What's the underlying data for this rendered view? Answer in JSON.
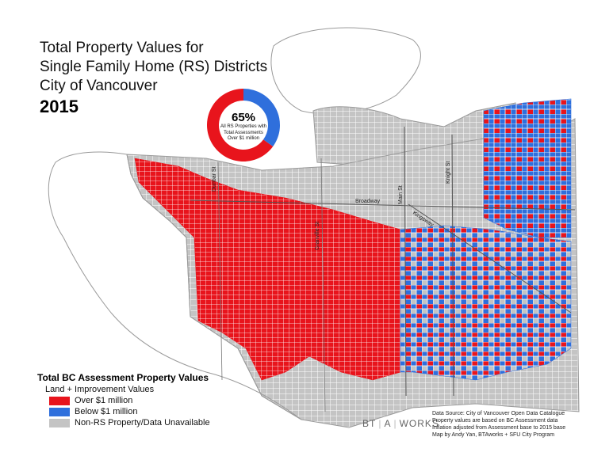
{
  "title": {
    "line1": "Total Property Values for",
    "line2": "Single Family Home (RS) Districts",
    "line3": "City of Vancouver",
    "year": "2015"
  },
  "donut": {
    "percent_label": "65%",
    "percent_value": 65,
    "caption_line1": "All RS Properties with",
    "caption_line2": "Total Assessments",
    "caption_line3": "Over $1 million"
  },
  "streets": {
    "dunbar": "Dunbar St",
    "granville": "Granville St",
    "main": "Main St",
    "knight": "Knight St",
    "broadway": "Broadway",
    "kingsway": "Kingsway"
  },
  "legend": {
    "title": "Total BC Assessment Property Values",
    "subtitle": "Land + Improvement Values",
    "items": [
      {
        "label": "Over $1 million",
        "color": "#e8141c"
      },
      {
        "label": "Below $1 million",
        "color": "#2f6fdc"
      },
      {
        "label": "Non-RS Property/Data Unavailable",
        "color": "#c4c4c4"
      }
    ]
  },
  "logo": {
    "part1": "BT",
    "part2": "A",
    "part3": "WORKS"
  },
  "source": {
    "line1": "Data Source: City of Vancouver Open Data Catalogue",
    "line2": "Property values are based on BC Assessment data",
    "line3": "Inflation adjusted from Assessment base to 2015 base",
    "line4": "Map by Andy Yan, BTAworks + SFU City Program"
  },
  "colors": {
    "over": "#e8141c",
    "below": "#2f6fdc",
    "non_rs": "#c4c4c4",
    "outline": "#9a9a9a",
    "water": "#ffffff"
  }
}
